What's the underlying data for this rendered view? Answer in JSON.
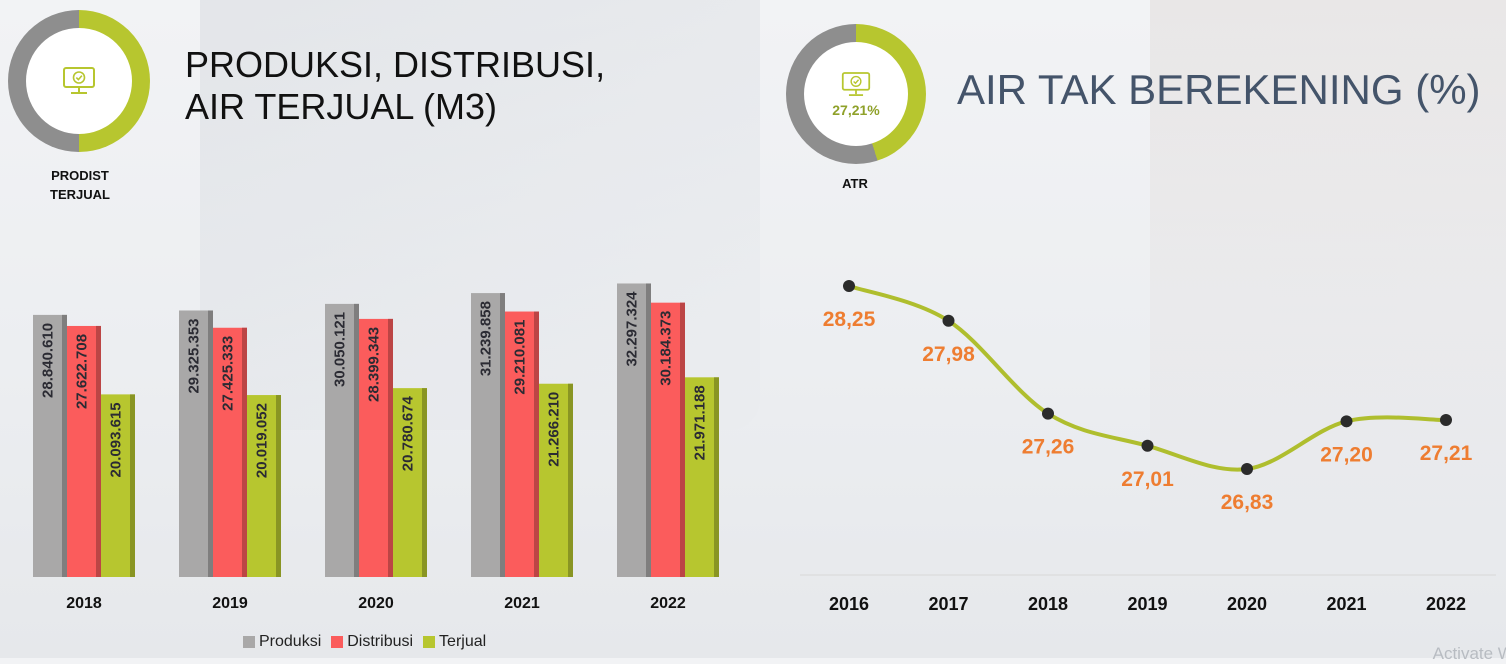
{
  "left_panel": {
    "icon": "monitor-check-icon",
    "caption": "PRODIST\nTERJUAL",
    "title": "PRODUKSI, DISTRIBUSI,\nAIR TERJUAL (M3)"
  },
  "right_panel": {
    "icon": "monitor-check-icon",
    "value": "27,21%",
    "caption": "ATR",
    "title": "AIR TAK BEREKENING (%)"
  },
  "watermark": "Activate Windo",
  "colors": {
    "produksi": "#a9a8a8",
    "distribusi": "#fb5c5c",
    "terjual": "#b7c62f",
    "line": "#afbe2e",
    "point": "#2b2b2b",
    "line_label": "#ee7d31",
    "donut_grey": "#8e8e8e",
    "donut_green": "#b7c62f"
  },
  "chart_data": [
    {
      "type": "bar",
      "categories": [
        "2018",
        "2019",
        "2020",
        "2021",
        "2022"
      ],
      "series": [
        {
          "name": "Produksi",
          "values": [
            28840610,
            29325353,
            30050121,
            31239858,
            32297324
          ],
          "labels": [
            "28.840.610",
            "29.325.353",
            "30.050.121",
            "31.239.858",
            "32.297.324"
          ]
        },
        {
          "name": "Distribusi",
          "values": [
            27622708,
            27425333,
            28399343,
            29210081,
            30184373
          ],
          "labels": [
            "27.622.708",
            "27.425.333",
            "28.399.343",
            "29.210.081",
            "30.184.373"
          ]
        },
        {
          "name": "Terjual",
          "values": [
            20093615,
            20019052,
            20780674,
            21266210,
            21971188
          ],
          "labels": [
            "20.093.615",
            "20.019.052",
            "20.780.674",
            "21.266.210",
            "21.971.188"
          ]
        }
      ],
      "legend_position": "bottom",
      "grid": false
    },
    {
      "type": "line",
      "x": [
        "2016",
        "2017",
        "2018",
        "2019",
        "2020",
        "2021",
        "2022"
      ],
      "values": [
        28.25,
        27.98,
        27.26,
        27.01,
        26.83,
        27.2,
        27.21
      ],
      "labels": [
        "28,25",
        "27,98",
        "27,26",
        "27,01",
        "26,83",
        "27,20",
        "27,21"
      ],
      "grid": false
    }
  ]
}
